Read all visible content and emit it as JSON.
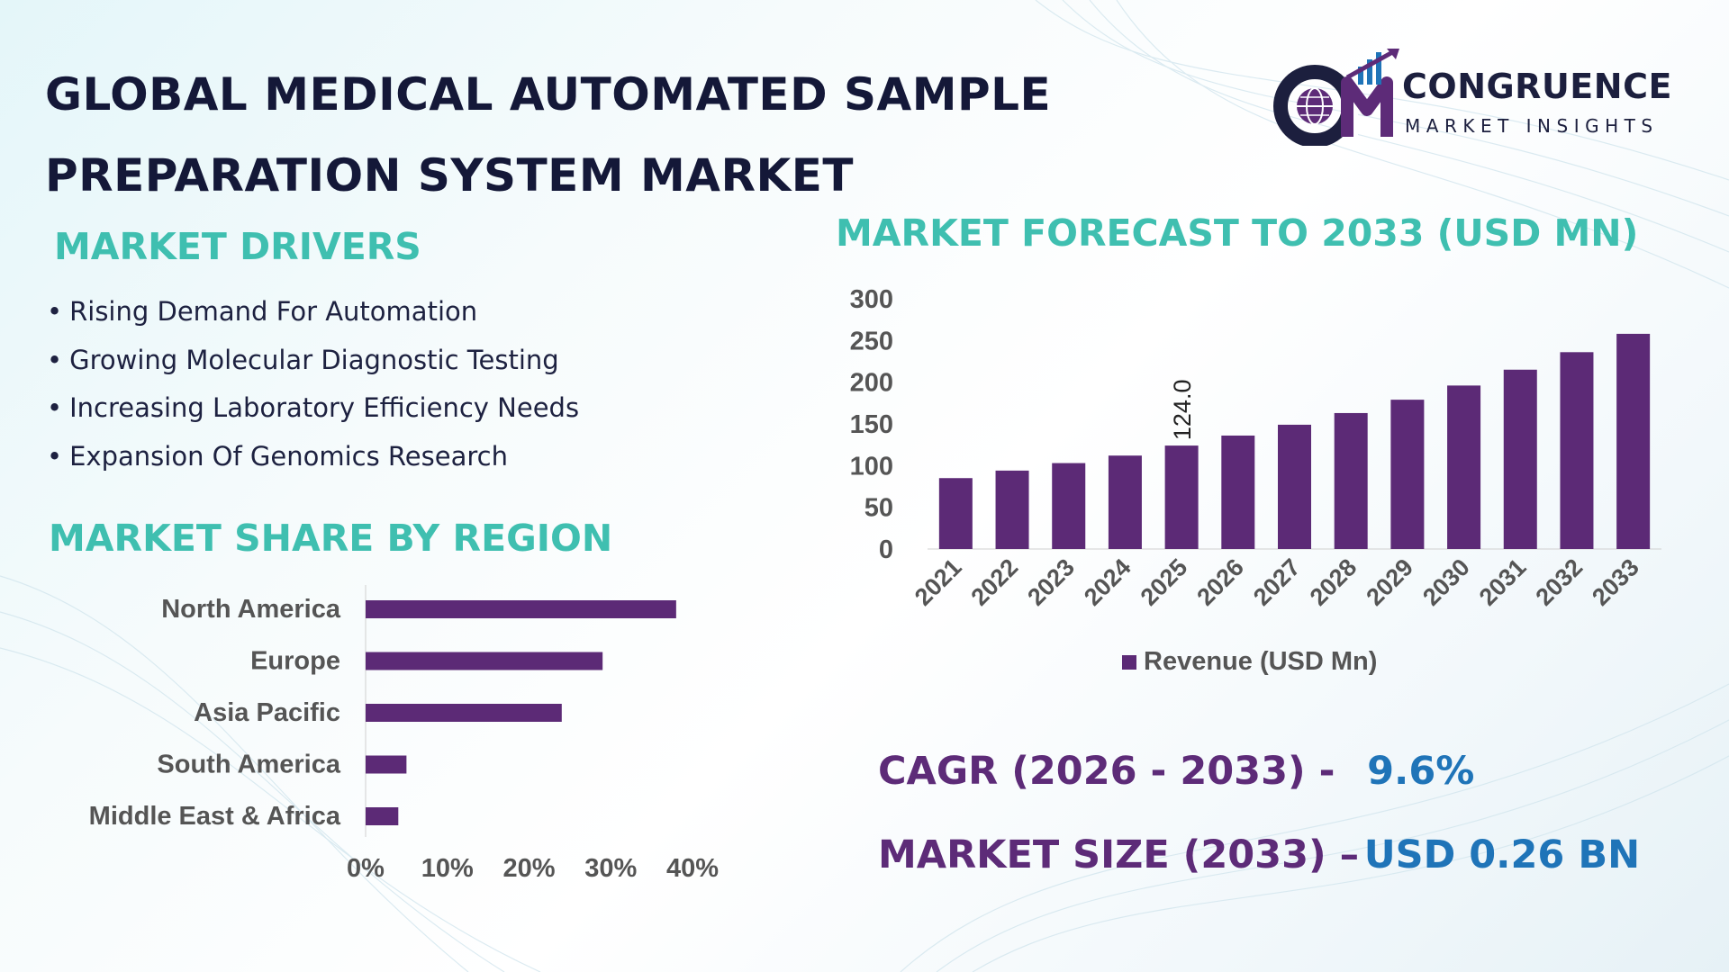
{
  "title": {
    "line1": "GLOBAL MEDICAL AUTOMATED SAMPLE",
    "line2": "PREPARATION SYSTEM MARKET"
  },
  "logo": {
    "mark": "CM",
    "name": "CONGRUENCE",
    "tagline": "MARKET INSIGHTS",
    "icon": "globe-growth-arrow-icon"
  },
  "drivers": {
    "heading": "MARKET DRIVERS",
    "bullet": "•",
    "items": [
      "Rising Demand For Automation",
      "Growing Molecular Diagnostic Testing",
      "Increasing Laboratory Efficiency Needs",
      "Expansion Of Genomics Research"
    ]
  },
  "region": {
    "heading": "MARKET SHARE BY REGION"
  },
  "forecast": {
    "heading": "MARKET FORECAST TO 2033 (USD MN)"
  },
  "stats": {
    "cagr_label": "CAGR (2026 - 2033) -",
    "cagr_value": "9.6%",
    "size_label": "MARKET SIZE (2033) –",
    "size_value": "USD 0.26 BN"
  },
  "colors": {
    "bar": "#5c2a76",
    "heading": "#3fbfb0",
    "title": "#141838",
    "stat_label": "#5d2b78",
    "stat_value": "#1f74b8",
    "axis_text": "#555555"
  },
  "chart_data": [
    {
      "type": "bar",
      "orientation": "horizontal",
      "categories": [
        "North America",
        "Europe",
        "Asia Pacific",
        "South America",
        "Middle East & Africa"
      ],
      "values": [
        38,
        29,
        24,
        5,
        4
      ],
      "unit": "%",
      "xticks": [
        "0%",
        "10%",
        "20%",
        "30%",
        "40%"
      ],
      "xlim": [
        0,
        40
      ],
      "title": "",
      "xlabel": "",
      "ylabel": "",
      "grid": false,
      "legend": "none"
    },
    {
      "type": "bar",
      "orientation": "vertical",
      "categories": [
        "2021",
        "2022",
        "2023",
        "2024",
        "2025",
        "2026",
        "2027",
        "2028",
        "2029",
        "2030",
        "2031",
        "2032",
        "2033"
      ],
      "series": [
        {
          "name": "Revenue (USD Mn)",
          "values": [
            85,
            94,
            103,
            112,
            124.0,
            136,
            149,
            163,
            179,
            196,
            215,
            236,
            258
          ]
        }
      ],
      "data_labels": [
        {
          "category": "2025",
          "text": "124.0"
        }
      ],
      "yticks": [
        "0",
        "50",
        "100",
        "150",
        "200",
        "250",
        "300"
      ],
      "ylim": [
        0,
        300
      ],
      "title": "",
      "xlabel": "",
      "ylabel": "",
      "grid": false,
      "legend": "bottom-center"
    }
  ]
}
